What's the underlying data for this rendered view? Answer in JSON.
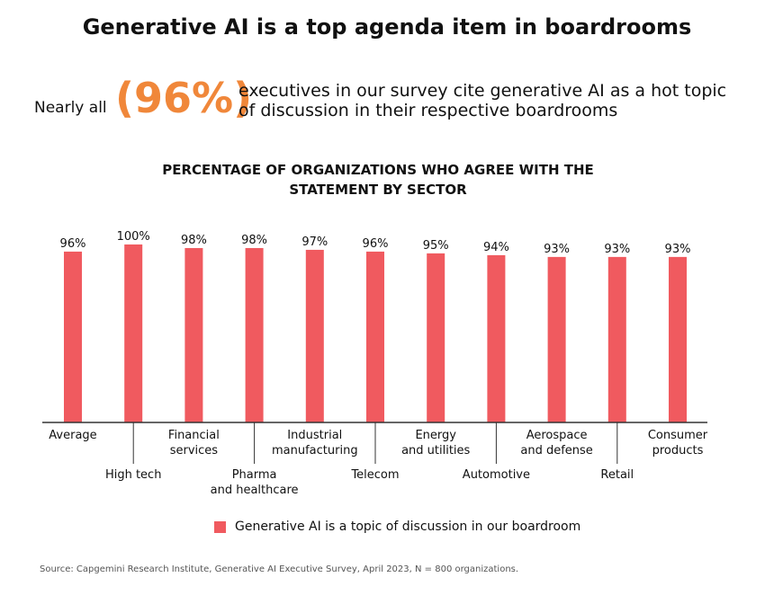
{
  "title": "Generative AI is a top agenda item in boardrooms",
  "highlight": {
    "prefix": "Nearly all",
    "value": "(96%)",
    "statement_line1": "executives in our survey cite generative AI as a hot topic",
    "statement_line2": "of discussion in their respective boardrooms",
    "color": "#f0873a"
  },
  "chart_data": {
    "type": "bar",
    "title_line1": "PERCENTAGE OF ORGANIZATIONS WHO AGREE WITH THE",
    "title_line2": "STATEMENT BY SECTOR",
    "categories": [
      [
        "Average"
      ],
      [
        "High tech"
      ],
      [
        "Financial",
        "services"
      ],
      [
        "Pharma",
        "and healthcare"
      ],
      [
        "Industrial",
        "manufacturing"
      ],
      [
        "Telecom"
      ],
      [
        "Energy",
        "and utilities"
      ],
      [
        "Automotive"
      ],
      [
        "Aerospace",
        "and defense"
      ],
      [
        "Retail"
      ],
      [
        "Consumer",
        "products"
      ]
    ],
    "series": [
      {
        "name": "Generative AI is a topic of discussion in our boardroom",
        "values": [
          96,
          100,
          98,
          98,
          97,
          96,
          95,
          94,
          93,
          93,
          93
        ],
        "color": "#f05a5f"
      }
    ],
    "data_labels": [
      "96%",
      "100%",
      "98%",
      "98%",
      "97%",
      "96%",
      "95%",
      "94%",
      "93%",
      "93%",
      "93%"
    ],
    "ylim": [
      0,
      100
    ],
    "grid": false,
    "legend_position": "bottom"
  },
  "source": "Source: Capgemini Research Institute, Generative AI Executive Survey, April 2023, N = 800 organizations."
}
